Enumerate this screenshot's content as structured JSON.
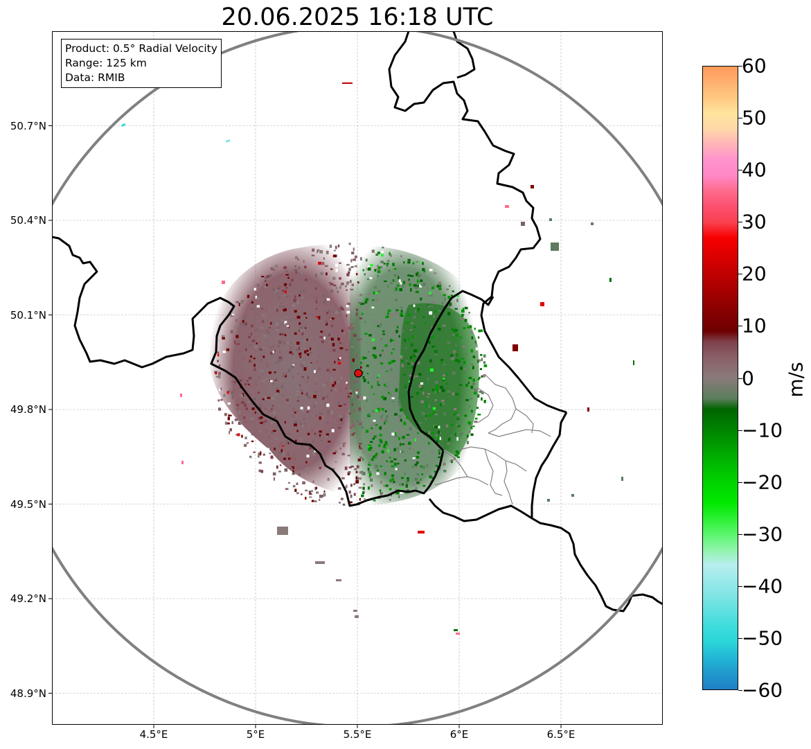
{
  "title": "20.06.2025 16:18 UTC",
  "info_box": {
    "product": "Product: 0.5° Radial Velocity",
    "range": "Range: 125 km",
    "data_source": "Data: RMIB"
  },
  "map": {
    "extent": {
      "lon_min": 4.0,
      "lon_max": 7.0,
      "lat_min": 48.8,
      "lat_max": 51.0
    },
    "radar_site": {
      "lon": 5.505,
      "lat": 49.915,
      "color": "#e01010"
    },
    "range_ring_km": 125,
    "gridlines": true,
    "lat_ticks": [
      {
        "value": 48.9,
        "label": "48.9°N"
      },
      {
        "value": 49.2,
        "label": "49.2°N"
      },
      {
        "value": 49.5,
        "label": "49.5°N"
      },
      {
        "value": 49.8,
        "label": "49.8°N"
      },
      {
        "value": 50.1,
        "label": "50.1°N"
      },
      {
        "value": 50.4,
        "label": "50.4°N"
      },
      {
        "value": 50.7,
        "label": "50.7°N"
      }
    ],
    "lon_ticks": [
      {
        "value": 4.5,
        "label": "4.5°E"
      },
      {
        "value": 5.0,
        "label": "5°E"
      },
      {
        "value": 5.5,
        "label": "5.5°E"
      },
      {
        "value": 6.0,
        "label": "6°E"
      },
      {
        "value": 6.5,
        "label": "6.5°E"
      }
    ]
  },
  "colorbar": {
    "unit": "m/s",
    "min": -60,
    "max": 60,
    "ticks": [
      {
        "value": 60,
        "label": "60"
      },
      {
        "value": 50,
        "label": "50"
      },
      {
        "value": 40,
        "label": "40"
      },
      {
        "value": 30,
        "label": "30"
      },
      {
        "value": 20,
        "label": "20"
      },
      {
        "value": 10,
        "label": "10"
      },
      {
        "value": 0,
        "label": "0"
      },
      {
        "value": -10,
        "label": "−10"
      },
      {
        "value": -20,
        "label": "−20"
      },
      {
        "value": -30,
        "label": "−30"
      },
      {
        "value": -40,
        "label": "−40"
      },
      {
        "value": -50,
        "label": "−50"
      },
      {
        "value": -60,
        "label": "−60"
      }
    ],
    "stops": [
      {
        "value": -60,
        "color": "#1f7fc4"
      },
      {
        "value": -57,
        "color": "#2098cc"
      },
      {
        "value": -54,
        "color": "#22b6d6"
      },
      {
        "value": -51,
        "color": "#2ad4d8"
      },
      {
        "value": -48,
        "color": "#3cdcdc"
      },
      {
        "value": -45,
        "color": "#5ee0e0"
      },
      {
        "value": -42,
        "color": "#7fe4e4"
      },
      {
        "value": -39,
        "color": "#9ae9e9"
      },
      {
        "value": -36,
        "color": "#b8eeee"
      },
      {
        "value": -33,
        "color": "#8df5a8"
      },
      {
        "value": -30,
        "color": "#5af56a"
      },
      {
        "value": -27,
        "color": "#2af032"
      },
      {
        "value": -24,
        "color": "#00e800"
      },
      {
        "value": -21,
        "color": "#00d800"
      },
      {
        "value": -18,
        "color": "#00c400"
      },
      {
        "value": -15,
        "color": "#00ac00"
      },
      {
        "value": -12,
        "color": "#009400"
      },
      {
        "value": -9,
        "color": "#007c00"
      },
      {
        "value": -6,
        "color": "#006400"
      },
      {
        "value": -4,
        "color": "#5a7e5c"
      },
      {
        "value": 0,
        "color": "#8a7a7a"
      },
      {
        "value": 4,
        "color": "#8a5f66"
      },
      {
        "value": 7,
        "color": "#7e404a"
      },
      {
        "value": 9,
        "color": "#6e0000"
      },
      {
        "value": 12,
        "color": "#820000"
      },
      {
        "value": 15,
        "color": "#980000"
      },
      {
        "value": 18,
        "color": "#b00000"
      },
      {
        "value": 21,
        "color": "#c80000"
      },
      {
        "value": 24,
        "color": "#e00000"
      },
      {
        "value": 27,
        "color": "#f80000"
      },
      {
        "value": 30,
        "color": "#fa4050"
      },
      {
        "value": 33,
        "color": "#fc5070"
      },
      {
        "value": 36,
        "color": "#fe6a8a"
      },
      {
        "value": 39,
        "color": "#ff88c6"
      },
      {
        "value": 42,
        "color": "#ff92cc"
      },
      {
        "value": 45,
        "color": "#ffb4b8"
      },
      {
        "value": 48,
        "color": "#ffd8a8"
      },
      {
        "value": 51,
        "color": "#ffe49c"
      },
      {
        "value": 54,
        "color": "#ffc880"
      },
      {
        "value": 57,
        "color": "#ffb070"
      },
      {
        "value": 60,
        "color": "#ff9a5a"
      }
    ]
  }
}
